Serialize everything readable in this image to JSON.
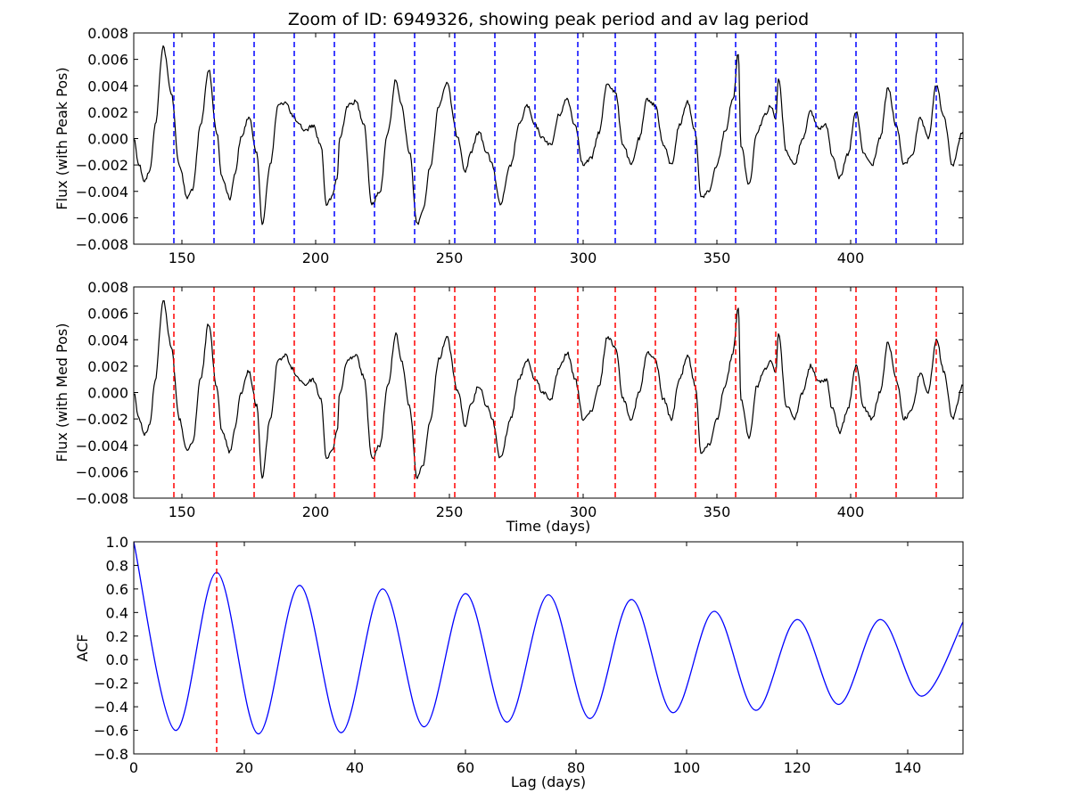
{
  "chart_data": [
    {
      "type": "line",
      "title": "Zoom of ID: 6949326, showing peak period and av lag period",
      "xlabel": "",
      "ylabel": "Flux (with Peak Pos)",
      "xlim": [
        132,
        442
      ],
      "ylim": [
        -0.008,
        0.008
      ],
      "x_ticks": [
        150,
        200,
        250,
        300,
        350,
        400
      ],
      "x_tick_labels": [
        "150",
        "200",
        "250",
        "300",
        "350",
        "400"
      ],
      "y_ticks": [
        -0.008,
        -0.006,
        -0.004,
        -0.002,
        0.0,
        0.002,
        0.004,
        0.006,
        0.008
      ],
      "y_tick_labels": [
        "−0.008",
        "−0.006",
        "−0.004",
        "−0.002",
        "0.000",
        "0.002",
        "0.004",
        "0.006",
        "0.008"
      ],
      "grid": false,
      "series": [
        {
          "color": "#000000",
          "x": [
            132,
            134,
            136,
            138,
            140,
            143,
            146,
            149,
            152,
            154,
            157,
            160,
            163,
            165,
            168,
            170,
            172,
            175,
            178,
            180,
            183,
            186,
            189,
            191,
            194,
            196,
            199,
            202,
            204,
            206,
            208,
            209,
            212,
            215,
            218,
            221,
            224,
            227,
            230,
            232,
            235,
            238,
            240,
            243,
            246,
            249,
            253,
            256,
            258,
            261,
            264,
            266,
            269,
            273,
            276,
            279,
            282,
            285,
            288,
            291,
            294,
            297,
            300,
            303,
            306,
            309,
            312,
            315,
            318,
            321,
            324,
            327,
            330,
            333,
            336,
            339,
            342,
            344,
            347,
            350,
            353,
            356,
            358,
            359,
            362,
            365,
            368,
            370,
            372,
            373,
            376,
            379,
            382,
            385,
            388,
            391,
            393,
            396,
            399,
            402,
            405,
            408,
            411,
            414,
            417,
            420,
            423,
            426,
            429,
            432,
            435,
            438,
            442
          ],
          "y": [
            0.0,
            -0.002,
            -0.0032,
            -0.0025,
            0.001,
            0.007,
            0.0035,
            -0.002,
            -0.0045,
            -0.0038,
            0.001,
            0.0052,
            0.0005,
            -0.003,
            -0.0045,
            -0.0025,
            0.0,
            0.0016,
            -0.001,
            -0.0065,
            -0.002,
            0.0025,
            0.0028,
            0.0018,
            0.001,
            0.0006,
            0.001,
            -0.0005,
            -0.005,
            -0.0045,
            -0.003,
            0.0,
            0.0025,
            0.0028,
            0.0012,
            -0.005,
            -0.004,
            0.0005,
            0.0045,
            0.0025,
            -0.001,
            -0.0065,
            -0.0055,
            -0.002,
            0.0025,
            0.0042,
            0.0002,
            -0.0025,
            -0.001,
            0.0005,
            -0.001,
            -0.002,
            -0.005,
            -0.002,
            0.001,
            0.0025,
            0.001,
            0.0,
            -0.0005,
            0.0018,
            0.003,
            0.001,
            -0.002,
            -0.0015,
            0.0005,
            0.0042,
            0.0035,
            -0.0005,
            -0.002,
            0.0,
            0.003,
            0.0025,
            -0.0005,
            -0.002,
            0.001,
            0.0028,
            0.0005,
            -0.0045,
            -0.004,
            -0.002,
            0.0005,
            0.003,
            0.0065,
            -0.0005,
            -0.0035,
            0.0005,
            0.0018,
            0.0025,
            0.0015,
            0.0045,
            -0.001,
            -0.002,
            0.0,
            0.002,
            0.0008,
            0.001,
            -0.0012,
            -0.003,
            -0.0012,
            0.002,
            -0.0012,
            -0.002,
            0.0,
            0.0038,
            0.001,
            -0.002,
            -0.0012,
            0.0015,
            0.0,
            0.004,
            0.0015,
            -0.002,
            0.0005
          ]
        }
      ],
      "markers": {
        "color": "#0000ff",
        "style": "dashed",
        "x": [
          147,
          162,
          177,
          192,
          207,
          222,
          237,
          252,
          267,
          282,
          298,
          312,
          327,
          342,
          357,
          372,
          387,
          402,
          417,
          432
        ]
      }
    },
    {
      "type": "line",
      "title": "",
      "xlabel": "Time (days)",
      "ylabel": "Flux (with Med Pos)",
      "xlim": [
        132,
        442
      ],
      "ylim": [
        -0.008,
        0.008
      ],
      "x_ticks": [
        150,
        200,
        250,
        300,
        350,
        400
      ],
      "x_tick_labels": [
        "150",
        "200",
        "250",
        "300",
        "350",
        "400"
      ],
      "y_ticks": [
        -0.008,
        -0.006,
        -0.004,
        -0.002,
        0.0,
        0.002,
        0.004,
        0.006,
        0.008
      ],
      "y_tick_labels": [
        "−0.008",
        "−0.006",
        "−0.004",
        "−0.002",
        "0.000",
        "0.002",
        "0.004",
        "0.006",
        "0.008"
      ],
      "grid": false,
      "series": [
        {
          "color": "#000000",
          "x": [
            132,
            134,
            136,
            138,
            140,
            143,
            146,
            149,
            152,
            154,
            157,
            160,
            163,
            165,
            168,
            170,
            172,
            175,
            178,
            180,
            183,
            186,
            189,
            191,
            194,
            196,
            199,
            202,
            204,
            206,
            208,
            209,
            212,
            215,
            218,
            221,
            224,
            227,
            230,
            232,
            235,
            238,
            240,
            243,
            246,
            249,
            253,
            256,
            258,
            261,
            264,
            266,
            269,
            273,
            276,
            279,
            282,
            285,
            288,
            291,
            294,
            297,
            300,
            303,
            306,
            309,
            312,
            315,
            318,
            321,
            324,
            327,
            330,
            333,
            336,
            339,
            342,
            344,
            347,
            350,
            353,
            356,
            358,
            359,
            362,
            365,
            368,
            370,
            372,
            373,
            376,
            379,
            382,
            385,
            388,
            391,
            393,
            396,
            399,
            402,
            405,
            408,
            411,
            414,
            417,
            420,
            423,
            426,
            429,
            432,
            435,
            438,
            442
          ],
          "y": [
            0.0,
            -0.002,
            -0.0032,
            -0.0025,
            0.001,
            0.007,
            0.0035,
            -0.002,
            -0.0045,
            -0.0038,
            0.001,
            0.0052,
            0.0005,
            -0.003,
            -0.0045,
            -0.0025,
            0.0,
            0.0016,
            -0.001,
            -0.0065,
            -0.002,
            0.0025,
            0.0028,
            0.0018,
            0.001,
            0.0006,
            0.001,
            -0.0005,
            -0.005,
            -0.0045,
            -0.003,
            0.0,
            0.0025,
            0.0028,
            0.0012,
            -0.005,
            -0.004,
            0.0005,
            0.0045,
            0.0025,
            -0.001,
            -0.0065,
            -0.0055,
            -0.002,
            0.0025,
            0.0042,
            0.0002,
            -0.0025,
            -0.001,
            0.0005,
            -0.001,
            -0.002,
            -0.005,
            -0.002,
            0.001,
            0.0025,
            0.001,
            0.0,
            -0.0005,
            0.0018,
            0.003,
            0.001,
            -0.002,
            -0.0015,
            0.0005,
            0.0042,
            0.0035,
            -0.0005,
            -0.002,
            0.0,
            0.003,
            0.0025,
            -0.0005,
            -0.002,
            0.001,
            0.0028,
            0.0005,
            -0.0045,
            -0.004,
            -0.002,
            0.0005,
            0.003,
            0.0065,
            -0.0005,
            -0.0035,
            0.0005,
            0.0018,
            0.0025,
            0.0015,
            0.0045,
            -0.001,
            -0.002,
            0.0,
            0.002,
            0.0008,
            0.001,
            -0.0012,
            -0.003,
            -0.0012,
            0.002,
            -0.0012,
            -0.002,
            0.0,
            0.0038,
            0.001,
            -0.002,
            -0.0012,
            0.0015,
            0.0,
            0.004,
            0.0015,
            -0.002,
            0.0005
          ]
        }
      ],
      "markers": {
        "color": "#ff0000",
        "style": "dashed",
        "x": [
          147,
          162,
          177,
          192,
          207,
          222,
          237,
          252,
          267,
          282,
          298,
          312,
          327,
          342,
          357,
          372,
          387,
          402,
          417,
          432
        ]
      }
    },
    {
      "type": "line",
      "title": "",
      "xlabel": "Lag (days)",
      "ylabel": "ACF",
      "xlim": [
        0,
        150
      ],
      "ylim": [
        -0.8,
        1.0
      ],
      "x_ticks": [
        0,
        20,
        40,
        60,
        80,
        100,
        120,
        140
      ],
      "x_tick_labels": [
        "0",
        "20",
        "40",
        "60",
        "80",
        "100",
        "120",
        "140"
      ],
      "y_ticks": [
        -0.8,
        -0.6,
        -0.4,
        -0.2,
        0.0,
        0.2,
        0.4,
        0.6,
        0.8,
        1.0
      ],
      "y_tick_labels": [
        "−0.8",
        "−0.6",
        "−0.4",
        "−0.2",
        "0.0",
        "0.2",
        "0.4",
        "0.6",
        "0.8",
        "1.0"
      ],
      "grid": false,
      "series": [
        {
          "color": "#0000ff",
          "x": [
            0,
            7.5,
            15,
            22.5,
            30,
            37.5,
            45,
            52.5,
            60,
            67.5,
            75,
            82.5,
            90,
            97.5,
            105,
            112.5,
            120,
            127.5,
            135,
            142.5,
            150
          ],
          "y": [
            1.0,
            -0.6,
            0.74,
            -0.63,
            0.63,
            -0.62,
            0.6,
            -0.57,
            0.56,
            -0.53,
            0.55,
            -0.5,
            0.51,
            -0.45,
            0.41,
            -0.43,
            0.34,
            -0.38,
            0.34,
            -0.31,
            0.32
          ]
        }
      ],
      "markers": {
        "color": "#ff0000",
        "style": "dashed",
        "x": [
          15
        ]
      }
    }
  ]
}
